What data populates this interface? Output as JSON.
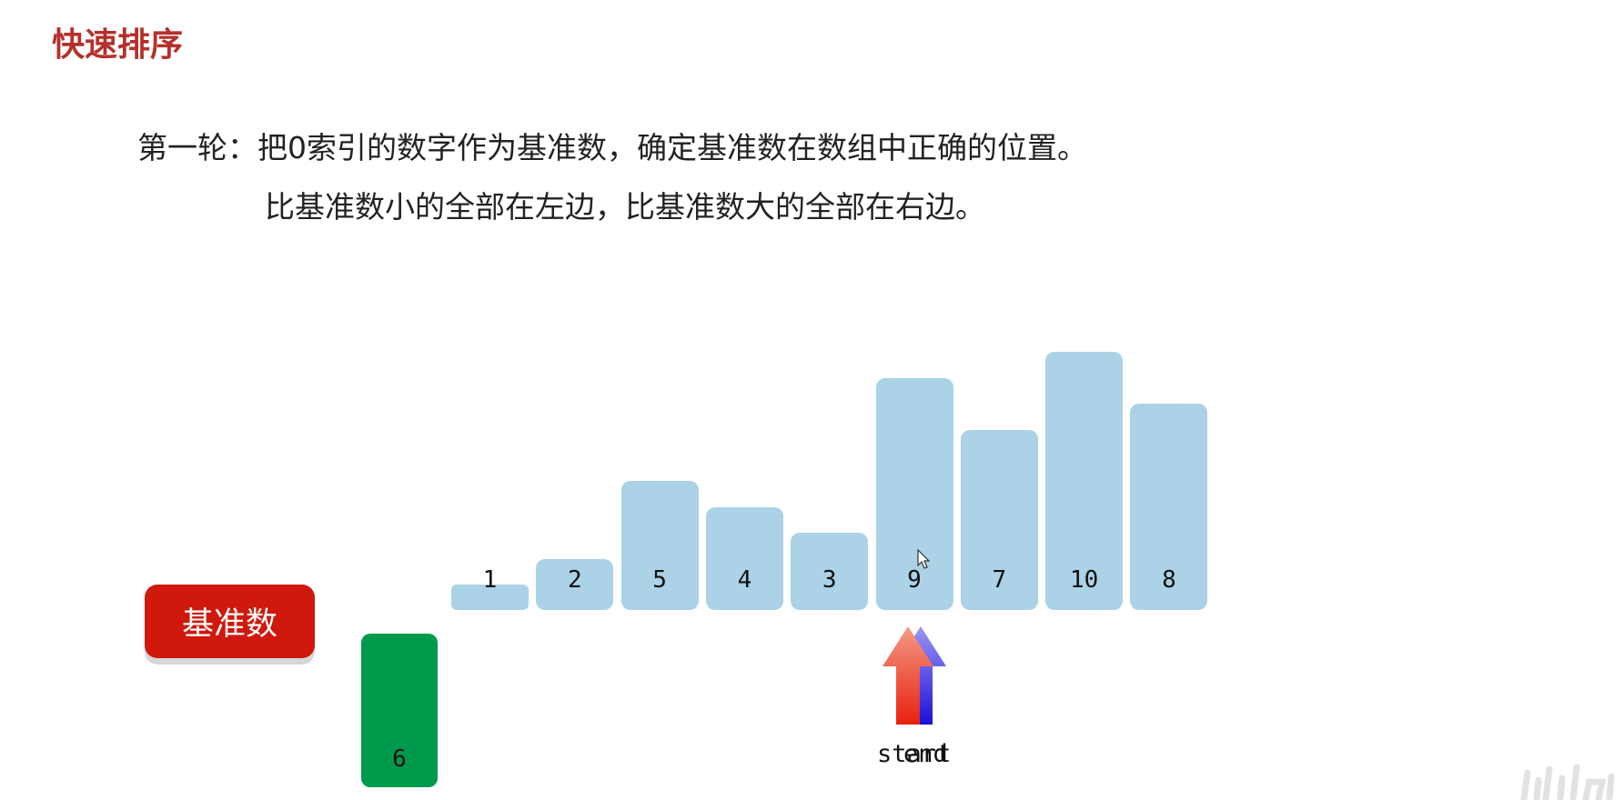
{
  "header": {
    "title": "快速排序"
  },
  "description": {
    "line1": "第一轮：把0索引的数字作为基准数，确定基准数在数组中正确的位置。",
    "line2": "比基准数小的全部在左边，比基准数大的全部在右边。"
  },
  "pivot": {
    "button_label": "基准数",
    "value": "6"
  },
  "array": {
    "values": [
      1,
      2,
      5,
      4,
      3,
      9,
      7,
      10,
      8
    ],
    "labels": [
      "1",
      "2",
      "5",
      "4",
      "3",
      "9",
      "7",
      "10",
      "8"
    ]
  },
  "pointers": {
    "start_label": "start",
    "end_label": "end",
    "index": 5
  },
  "colors": {
    "bar": "#abd2e7",
    "pivot_bar": "#009a4c",
    "pivot_button": "#d0180c",
    "title": "#b5302b",
    "start_arrow": "#e83a1f",
    "end_arrow": "#2a1fd8"
  }
}
